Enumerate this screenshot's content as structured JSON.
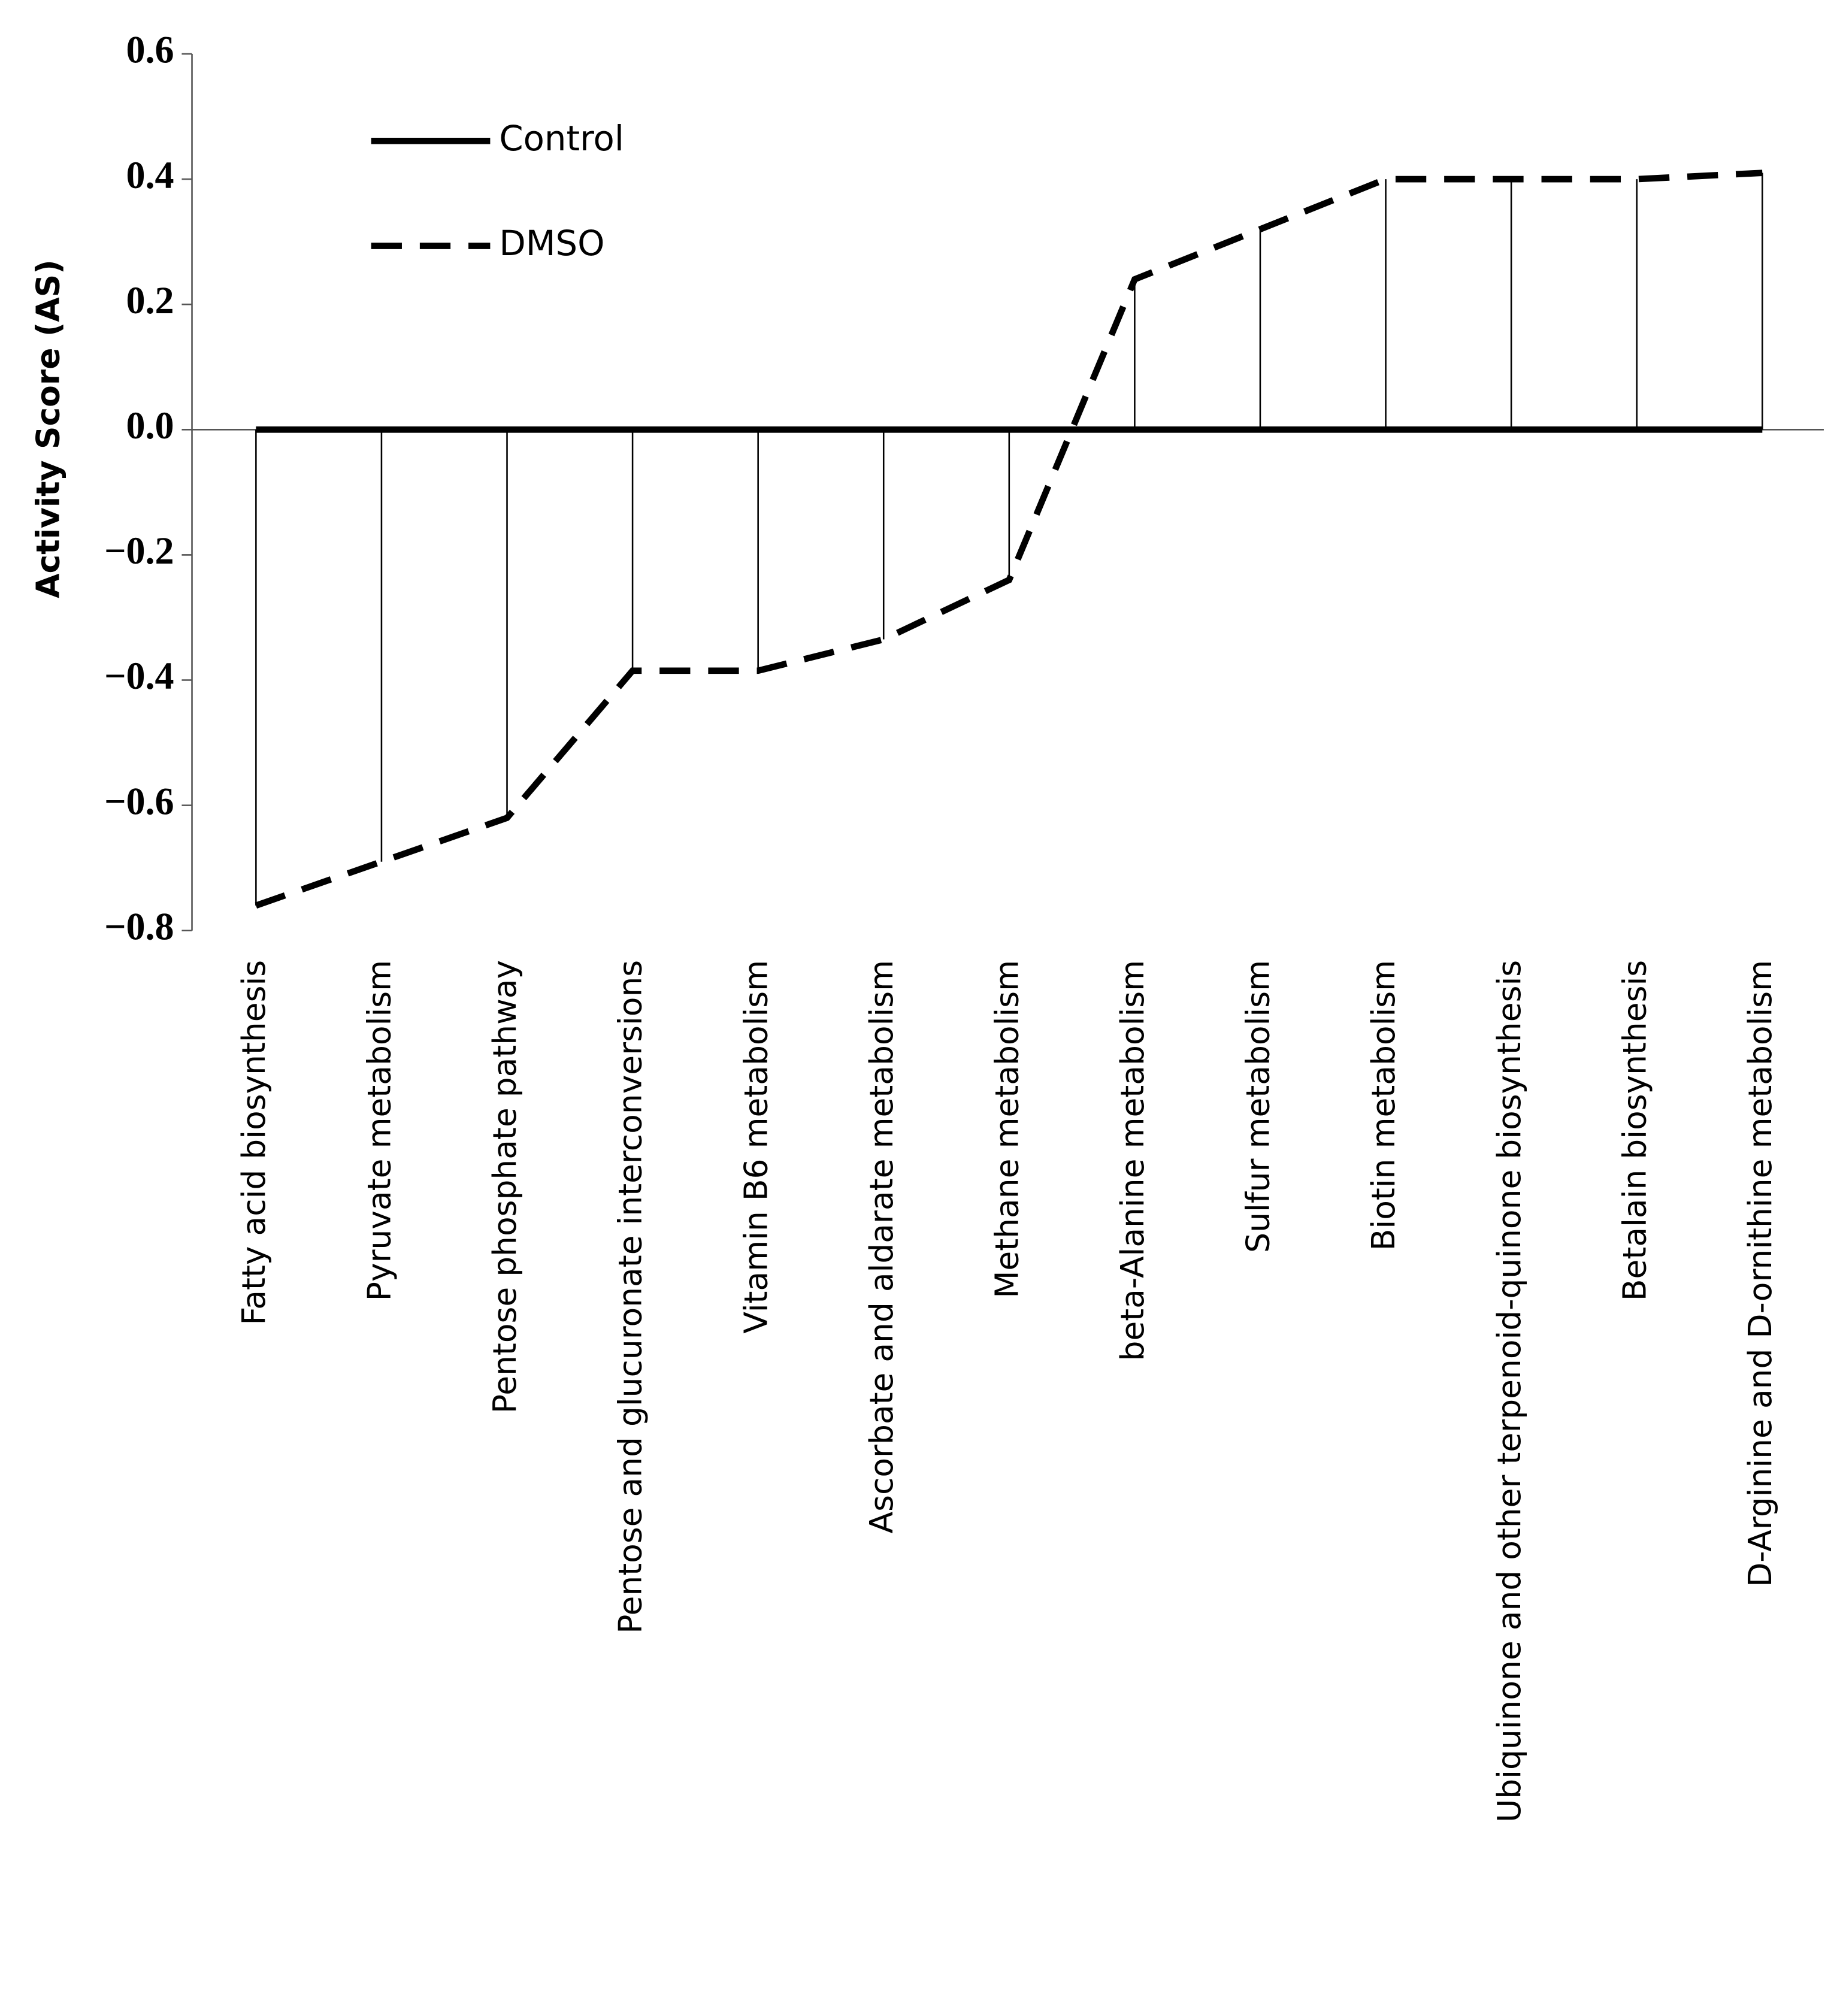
{
  "chart_data": {
    "type": "line",
    "y_label": "Activity Score (AS)",
    "categories": [
      "Fatty acid biosynthesis",
      "Pyruvate metabolism",
      "Pentose phosphate pathway",
      "Pentose and glucuronate interconversions",
      "Vitamin B6 metabolism",
      "Ascorbate and aldarate metabolism",
      "Methane metabolism",
      "beta-Alanine metabolism",
      "Sulfur metabolism",
      "Biotin metabolism",
      "Ubiquinone and other terpenoid-quinone biosynthesis",
      "Betalain biosynthesis",
      "D-Arginine and D-ornithine metabolism"
    ],
    "series": [
      {
        "name": "Control",
        "color": "#000000",
        "dash": false,
        "values": [
          0,
          0,
          0,
          0,
          0,
          0,
          0,
          0,
          0,
          0,
          0,
          0,
          0
        ]
      },
      {
        "name": "DMSO",
        "color": "#000000",
        "dash": true,
        "values": [
          -0.76,
          -0.69,
          -0.62,
          -0.385,
          -0.385,
          -0.335,
          -0.24,
          0.24,
          0.32,
          0.4,
          0.4,
          0.4,
          0.41
        ]
      }
    ],
    "ylim": [
      -0.8,
      0.6
    ],
    "yticks": [
      0.6,
      0.4,
      0.2,
      {
        "value": 0,
        "label": "0.0"
      },
      {
        "value": -0.2,
        "label": "−0.2"
      },
      {
        "value": -0.4,
        "label": "−0.4"
      },
      {
        "value": -0.6,
        "label": "−0.6"
      },
      {
        "value": -0.8,
        "label": "−0.8"
      }
    ],
    "grid": false,
    "legend": "upper left",
    "stems": true
  }
}
